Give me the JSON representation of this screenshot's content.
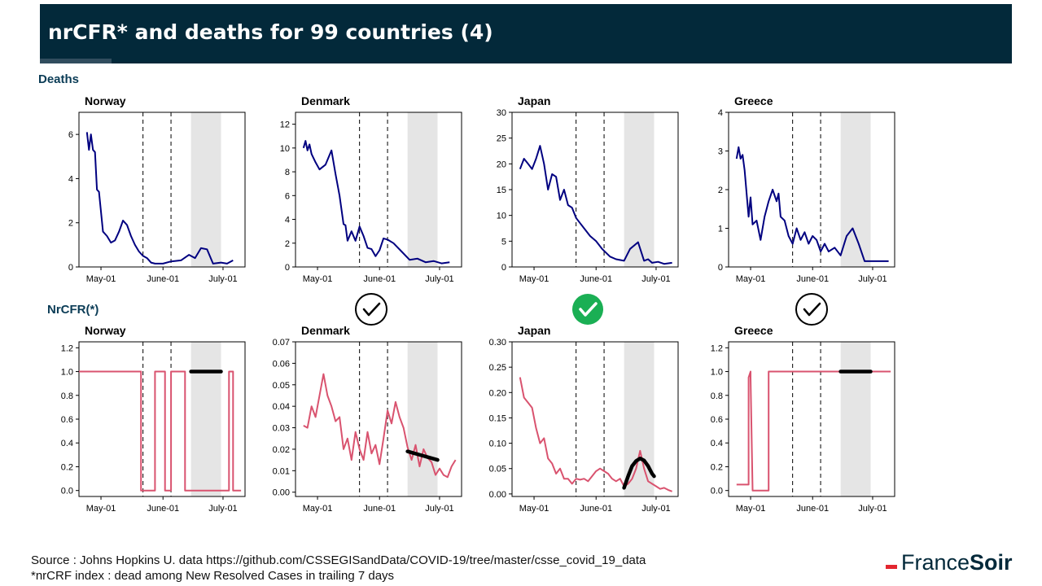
{
  "header": {
    "title": "nrCFR* and deaths for 99 countries (4)"
  },
  "sections": {
    "deaths_label": "Deaths",
    "nrcfr_label": "NrCFR(*)"
  },
  "footer": {
    "source": "Source : Johns Hopkins U. data https://github.com/CSSEGISandData/COVID-19/tree/master/csse_covid_19_data",
    "note": "*nrCRF index : dead among New Resolved  Cases in trailing 7 days"
  },
  "brand": {
    "light": "France",
    "bold": "Soir"
  },
  "colors": {
    "deaths_line": "#000080",
    "nrcfr_line": "#d9536f",
    "highlight_band": "#e5e5e5",
    "trend_line": "#000000",
    "check_green": "#1aaf54"
  },
  "chart_data": [
    {
      "type": "line",
      "row": "deaths",
      "title": "Norway",
      "xlim": [
        "2020-04-20",
        "2020-07-12"
      ],
      "xticks": [
        "May-01",
        "June-01",
        "July-01"
      ],
      "ylim": [
        0,
        7
      ],
      "yticks": [
        0,
        2,
        4,
        6
      ],
      "vlines": [
        "2020-05-22",
        "2020-06-05"
      ],
      "band": [
        "2020-06-15",
        "2020-06-30"
      ],
      "series": [
        {
          "x": [
            "2020-04-24",
            "2020-04-25",
            "2020-04-26",
            "2020-04-27",
            "2020-04-28",
            "2020-04-29",
            "2020-04-30",
            "2020-05-02",
            "2020-05-04",
            "2020-05-06",
            "2020-05-08",
            "2020-05-10",
            "2020-05-12",
            "2020-05-14",
            "2020-05-16",
            "2020-05-18",
            "2020-05-20",
            "2020-05-22",
            "2020-05-24",
            "2020-05-26",
            "2020-05-28",
            "2020-06-01",
            "2020-06-05",
            "2020-06-10",
            "2020-06-14",
            "2020-06-17",
            "2020-06-20",
            "2020-06-23",
            "2020-06-26",
            "2020-06-30",
            "2020-07-03",
            "2020-07-06"
          ],
          "y": [
            6.1,
            5.3,
            6.0,
            5.3,
            5.2,
            3.5,
            3.4,
            1.6,
            1.4,
            1.1,
            1.2,
            1.6,
            2.1,
            1.9,
            1.4,
            1.0,
            0.7,
            0.5,
            0.4,
            0.2,
            0.15,
            0.15,
            0.25,
            0.3,
            0.55,
            0.4,
            0.85,
            0.8,
            0.15,
            0.2,
            0.15,
            0.3
          ]
        }
      ]
    },
    {
      "type": "line",
      "row": "deaths",
      "title": "Denmark",
      "xlim": [
        "2020-04-20",
        "2020-07-12"
      ],
      "xticks": [
        "May-01",
        "June-01",
        "July-01"
      ],
      "ylim": [
        0,
        13
      ],
      "yticks": [
        0,
        2,
        4,
        6,
        8,
        10,
        12
      ],
      "vlines": [
        "2020-05-22",
        "2020-06-05"
      ],
      "band": [
        "2020-06-15",
        "2020-06-30"
      ],
      "series": [
        {
          "x": [
            "2020-04-24",
            "2020-04-25",
            "2020-04-26",
            "2020-04-27",
            "2020-04-28",
            "2020-04-30",
            "2020-05-02",
            "2020-05-05",
            "2020-05-08",
            "2020-05-10",
            "2020-05-12",
            "2020-05-14",
            "2020-05-15",
            "2020-05-16",
            "2020-05-18",
            "2020-05-20",
            "2020-05-22",
            "2020-05-24",
            "2020-05-26",
            "2020-05-28",
            "2020-05-30",
            "2020-06-01",
            "2020-06-03",
            "2020-06-05",
            "2020-06-08",
            "2020-06-12",
            "2020-06-16",
            "2020-06-20",
            "2020-06-24",
            "2020-06-28",
            "2020-07-02",
            "2020-07-06"
          ],
          "y": [
            10.0,
            10.6,
            9.8,
            10.3,
            9.5,
            8.8,
            8.2,
            8.6,
            9.8,
            7.8,
            6.0,
            3.6,
            3.5,
            2.2,
            3.0,
            2.2,
            3.4,
            2.6,
            1.6,
            1.5,
            0.9,
            1.4,
            2.4,
            2.3,
            2.0,
            1.3,
            0.6,
            0.7,
            0.4,
            0.5,
            0.3,
            0.4
          ]
        }
      ]
    },
    {
      "type": "line",
      "row": "deaths",
      "title": "Japan",
      "xlim": [
        "2020-04-20",
        "2020-07-12"
      ],
      "xticks": [
        "May-01",
        "June-01",
        "July-01"
      ],
      "ylim": [
        0,
        30
      ],
      "yticks": [
        0,
        5,
        10,
        15,
        20,
        25,
        30
      ],
      "vlines": [
        "2020-05-22",
        "2020-06-05"
      ],
      "band": [
        "2020-06-15",
        "2020-06-30"
      ],
      "series": [
        {
          "x": [
            "2020-04-24",
            "2020-04-26",
            "2020-04-28",
            "2020-04-30",
            "2020-05-02",
            "2020-05-04",
            "2020-05-06",
            "2020-05-08",
            "2020-05-10",
            "2020-05-12",
            "2020-05-14",
            "2020-05-16",
            "2020-05-18",
            "2020-05-20",
            "2020-05-22",
            "2020-05-24",
            "2020-05-26",
            "2020-05-29",
            "2020-06-01",
            "2020-06-04",
            "2020-06-08",
            "2020-06-11",
            "2020-06-15",
            "2020-06-18",
            "2020-06-22",
            "2020-06-25",
            "2020-06-27",
            "2020-06-29",
            "2020-07-02",
            "2020-07-05",
            "2020-07-09"
          ],
          "y": [
            19,
            21,
            20,
            19,
            21,
            23.5,
            20,
            15,
            18,
            17.5,
            13,
            15,
            12,
            11.5,
            9.5,
            8.5,
            7.5,
            6,
            5,
            3.5,
            2,
            1.5,
            1.2,
            3.5,
            4.8,
            1.2,
            1.5,
            0.8,
            1,
            0.6,
            0.8
          ]
        }
      ]
    },
    {
      "type": "line",
      "row": "deaths",
      "title": "Greece",
      "xlim": [
        "2020-04-20",
        "2020-07-12"
      ],
      "xticks": [
        "May-01",
        "June-01",
        "July-01"
      ],
      "ylim": [
        0,
        4
      ],
      "yticks": [
        0,
        1,
        2,
        3,
        4
      ],
      "vlines": [
        "2020-05-22",
        "2020-06-05"
      ],
      "band": [
        "2020-06-15",
        "2020-06-30"
      ],
      "series": [
        {
          "x": [
            "2020-04-24",
            "2020-04-25",
            "2020-04-26",
            "2020-04-27",
            "2020-04-28",
            "2020-04-30",
            "2020-05-01",
            "2020-05-02",
            "2020-05-04",
            "2020-05-06",
            "2020-05-08",
            "2020-05-10",
            "2020-05-12",
            "2020-05-14",
            "2020-05-15",
            "2020-05-16",
            "2020-05-18",
            "2020-05-20",
            "2020-05-22",
            "2020-05-24",
            "2020-05-26",
            "2020-05-28",
            "2020-05-30",
            "2020-06-01",
            "2020-06-03",
            "2020-06-05",
            "2020-06-07",
            "2020-06-09",
            "2020-06-12",
            "2020-06-15",
            "2020-06-18",
            "2020-06-21",
            "2020-06-24",
            "2020-06-27",
            "2020-06-30",
            "2020-07-05",
            "2020-07-09"
          ],
          "y": [
            2.8,
            3.1,
            2.8,
            2.9,
            2.5,
            1.3,
            1.8,
            1.1,
            1.2,
            0.7,
            1.3,
            1.7,
            2.0,
            1.7,
            1.9,
            1.3,
            1.2,
            0.8,
            0.6,
            1.0,
            0.7,
            0.9,
            0.6,
            0.8,
            0.7,
            0.4,
            0.6,
            0.4,
            0.5,
            0.3,
            0.8,
            1.0,
            0.6,
            0.15,
            0.15,
            0.15,
            0.15
          ]
        }
      ]
    },
    {
      "type": "line",
      "row": "nrcfr",
      "title": "Norway",
      "xlim": [
        "2020-04-20",
        "2020-07-12"
      ],
      "xticks": [
        "May-01",
        "June-01",
        "July-01"
      ],
      "ylim": [
        -0.05,
        1.25
      ],
      "yticks": [
        0.0,
        0.2,
        0.4,
        0.6,
        0.8,
        1.0,
        1.2
      ],
      "vlines": [
        "2020-05-22",
        "2020-06-05"
      ],
      "band": [
        "2020-06-15",
        "2020-06-30"
      ],
      "trend": {
        "x": [
          "2020-06-15",
          "2020-06-30"
        ],
        "y": [
          1.0,
          1.0
        ]
      },
      "series": [
        {
          "x": [
            "2020-04-20",
            "2020-05-21",
            "2020-05-21",
            "2020-05-28",
            "2020-05-28",
            "2020-06-02",
            "2020-06-02",
            "2020-06-05",
            "2020-06-05",
            "2020-06-12",
            "2020-06-12",
            "2020-07-04",
            "2020-07-04",
            "2020-07-06",
            "2020-07-06",
            "2020-07-10"
          ],
          "y": [
            1.0,
            1.0,
            0.0,
            0.0,
            1.0,
            1.0,
            0.0,
            0.0,
            1.0,
            1.0,
            0.0,
            0.0,
            1.0,
            1.0,
            0.0,
            0.0
          ]
        }
      ]
    },
    {
      "type": "line",
      "row": "nrcfr",
      "title": "Denmark",
      "xlim": [
        "2020-04-20",
        "2020-07-12"
      ],
      "xticks": [
        "May-01",
        "June-01",
        "July-01"
      ],
      "ylim": [
        -0.002,
        0.07
      ],
      "yticks": [
        0.0,
        0.01,
        0.02,
        0.03,
        0.04,
        0.05,
        0.06,
        0.07
      ],
      "vlines": [
        "2020-05-22",
        "2020-06-05"
      ],
      "band": [
        "2020-06-15",
        "2020-06-30"
      ],
      "trend": {
        "x": [
          "2020-06-15",
          "2020-06-30"
        ],
        "y": [
          0.019,
          0.015
        ]
      },
      "series": [
        {
          "x": [
            "2020-04-24",
            "2020-04-26",
            "2020-04-28",
            "2020-04-30",
            "2020-05-02",
            "2020-05-04",
            "2020-05-06",
            "2020-05-08",
            "2020-05-10",
            "2020-05-12",
            "2020-05-14",
            "2020-05-16",
            "2020-05-18",
            "2020-05-20",
            "2020-05-22",
            "2020-05-24",
            "2020-05-26",
            "2020-05-28",
            "2020-05-30",
            "2020-06-01",
            "2020-06-03",
            "2020-06-05",
            "2020-06-07",
            "2020-06-09",
            "2020-06-11",
            "2020-06-13",
            "2020-06-15",
            "2020-06-17",
            "2020-06-19",
            "2020-06-21",
            "2020-06-23",
            "2020-06-25",
            "2020-06-27",
            "2020-06-29",
            "2020-07-01",
            "2020-07-03",
            "2020-07-05",
            "2020-07-07",
            "2020-07-09"
          ],
          "y": [
            0.031,
            0.03,
            0.04,
            0.035,
            0.045,
            0.055,
            0.045,
            0.04,
            0.033,
            0.035,
            0.02,
            0.025,
            0.015,
            0.028,
            0.02,
            0.015,
            0.028,
            0.018,
            0.022,
            0.013,
            0.025,
            0.038,
            0.032,
            0.042,
            0.035,
            0.03,
            0.021,
            0.015,
            0.022,
            0.012,
            0.02,
            0.016,
            0.014,
            0.008,
            0.011,
            0.008,
            0.007,
            0.012,
            0.015
          ]
        }
      ]
    },
    {
      "type": "line",
      "row": "nrcfr",
      "title": "Japan",
      "xlim": [
        "2020-04-20",
        "2020-07-12"
      ],
      "xticks": [
        "May-01",
        "June-01",
        "July-01"
      ],
      "ylim": [
        -0.005,
        0.3
      ],
      "yticks": [
        0.0,
        0.05,
        0.1,
        0.15,
        0.2,
        0.25,
        0.3
      ],
      "vlines": [
        "2020-05-22",
        "2020-06-05"
      ],
      "band": [
        "2020-06-15",
        "2020-06-30"
      ],
      "trend": {
        "x": [
          "2020-06-15",
          "2020-06-17",
          "2020-06-19",
          "2020-06-21",
          "2020-06-23",
          "2020-06-25",
          "2020-06-27",
          "2020-06-29",
          "2020-06-30"
        ],
        "y": [
          0.012,
          0.035,
          0.055,
          0.065,
          0.07,
          0.066,
          0.055,
          0.04,
          0.035
        ]
      },
      "series": [
        {
          "x": [
            "2020-04-24",
            "2020-04-26",
            "2020-04-28",
            "2020-04-30",
            "2020-05-02",
            "2020-05-04",
            "2020-05-06",
            "2020-05-08",
            "2020-05-10",
            "2020-05-12",
            "2020-05-14",
            "2020-05-16",
            "2020-05-18",
            "2020-05-20",
            "2020-05-22",
            "2020-05-24",
            "2020-05-26",
            "2020-05-28",
            "2020-05-30",
            "2020-06-01",
            "2020-06-03",
            "2020-06-05",
            "2020-06-07",
            "2020-06-09",
            "2020-06-11",
            "2020-06-13",
            "2020-06-15",
            "2020-06-17",
            "2020-06-19",
            "2020-06-21",
            "2020-06-23",
            "2020-06-25",
            "2020-06-27",
            "2020-06-29",
            "2020-07-01",
            "2020-07-03",
            "2020-07-05",
            "2020-07-07",
            "2020-07-09"
          ],
          "y": [
            0.23,
            0.19,
            0.18,
            0.17,
            0.13,
            0.1,
            0.11,
            0.07,
            0.06,
            0.04,
            0.05,
            0.03,
            0.03,
            0.02,
            0.03,
            0.028,
            0.03,
            0.025,
            0.035,
            0.045,
            0.05,
            0.045,
            0.04,
            0.03,
            0.025,
            0.03,
            0.015,
            0.02,
            0.03,
            0.05,
            0.085,
            0.05,
            0.025,
            0.02,
            0.015,
            0.01,
            0.012,
            0.008,
            0.005
          ]
        }
      ]
    },
    {
      "type": "line",
      "row": "nrcfr",
      "title": "Greece",
      "xlim": [
        "2020-04-20",
        "2020-07-12"
      ],
      "xticks": [
        "May-01",
        "June-01",
        "July-01"
      ],
      "ylim": [
        -0.05,
        1.25
      ],
      "yticks": [
        0.0,
        0.2,
        0.4,
        0.6,
        0.8,
        1.0,
        1.2
      ],
      "vlines": [
        "2020-05-22",
        "2020-06-05"
      ],
      "band": [
        "2020-06-15",
        "2020-06-30"
      ],
      "trend": {
        "x": [
          "2020-06-15",
          "2020-06-30"
        ],
        "y": [
          1.0,
          1.0
        ]
      },
      "series": [
        {
          "x": [
            "2020-04-24",
            "2020-04-30",
            "2020-04-30",
            "2020-05-01",
            "2020-05-01",
            "2020-05-02",
            "2020-05-02",
            "2020-05-10",
            "2020-05-10",
            "2020-07-10"
          ],
          "y": [
            0.05,
            0.05,
            0.95,
            1.0,
            0.95,
            0.0,
            0.0,
            0.0,
            1.0,
            1.0
          ]
        }
      ]
    }
  ],
  "checks": [
    {
      "panel": 1,
      "style": "outline"
    },
    {
      "panel": 2,
      "style": "filled"
    },
    {
      "panel": 3,
      "style": "outline"
    }
  ]
}
